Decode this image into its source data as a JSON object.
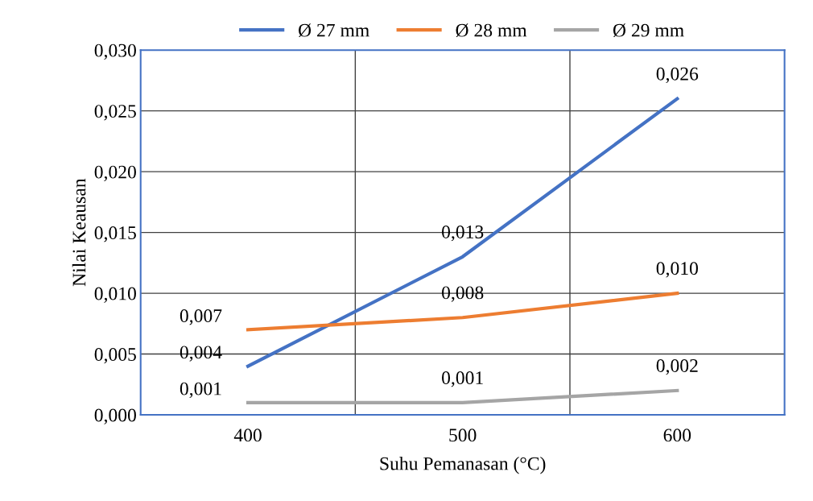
{
  "chart_data": {
    "type": "line",
    "xlabel": "Suhu Pemanasan (°C)",
    "ylabel": "Nilai Keausan",
    "categories": [
      "400",
      "500",
      "600"
    ],
    "series": [
      {
        "name": "Ø 27 mm",
        "color": "#4472c4",
        "values": [
          0.004,
          0.013,
          0.026
        ],
        "value_labels": [
          "0,004",
          "0,013",
          "0,026"
        ]
      },
      {
        "name": "Ø 28 mm",
        "color": "#ed7d31",
        "values": [
          0.007,
          0.008,
          0.01
        ],
        "value_labels": [
          "0,007",
          "0,008",
          "0,010"
        ]
      },
      {
        "name": "Ø 29 mm",
        "color": "#a5a5a5",
        "values": [
          0.001,
          0.001,
          0.002
        ],
        "value_labels": [
          "0,001",
          "0,001",
          "0,002"
        ]
      }
    ],
    "ylim": [
      0,
      0.03
    ],
    "yticks": [
      {
        "value": 0,
        "label": "0,000"
      },
      {
        "value": 0.005,
        "label": "0,005"
      },
      {
        "value": 0.01,
        "label": "0,010"
      },
      {
        "value": 0.015,
        "label": "0,015"
      },
      {
        "value": 0.02,
        "label": "0,020"
      },
      {
        "value": 0.025,
        "label": "0,025"
      },
      {
        "value": 0.03,
        "label": "0,030"
      }
    ],
    "grid": true,
    "legend": "top",
    "marker": "none",
    "line_style": "solid"
  }
}
